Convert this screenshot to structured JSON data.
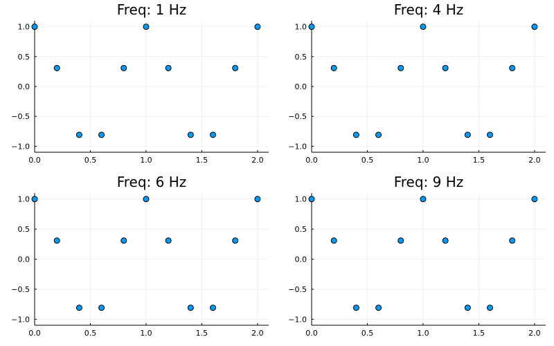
{
  "chart_data": [
    {
      "type": "scatter",
      "title": "Freq: 1 Hz",
      "xlabel": "",
      "ylabel": "",
      "xlim": [
        0,
        2.1
      ],
      "ylim": [
        -1.1,
        1.1
      ],
      "xticks": [
        0,
        0.5,
        1,
        1.5,
        2
      ],
      "xtick_labels": [
        "0.0",
        "0.5",
        "1.0",
        "1.5",
        "2.0"
      ],
      "yticks": [
        -1,
        -0.5,
        0,
        0.5,
        1
      ],
      "ytick_labels": [
        "−1.0",
        "−0.5",
        "0.0",
        "0.5",
        "1.0"
      ],
      "grid": true,
      "legend": "none",
      "color": "#009AFA",
      "series": [
        {
          "x": [
            0,
            0.2,
            0.4,
            0.6,
            0.8,
            1.0,
            1.2,
            1.4,
            1.6,
            1.8,
            2.0
          ],
          "y": [
            1.0,
            0.309,
            -0.809,
            -0.809,
            0.309,
            1.0,
            0.309,
            -0.809,
            -0.809,
            0.309,
            1.0
          ]
        }
      ]
    },
    {
      "type": "scatter",
      "title": "Freq: 4 Hz",
      "xlabel": "",
      "ylabel": "",
      "xlim": [
        0,
        2.1
      ],
      "ylim": [
        -1.1,
        1.1
      ],
      "xticks": [
        0,
        0.5,
        1,
        1.5,
        2
      ],
      "xtick_labels": [
        "0.0",
        "0.5",
        "1.0",
        "1.5",
        "2.0"
      ],
      "yticks": [
        -1,
        -0.5,
        0,
        0.5,
        1
      ],
      "ytick_labels": [
        "−1.0",
        "−0.5",
        "0.0",
        "0.5",
        "1.0"
      ],
      "grid": true,
      "legend": "none",
      "color": "#009AFA",
      "series": [
        {
          "x": [
            0,
            0.2,
            0.4,
            0.6,
            0.8,
            1.0,
            1.2,
            1.4,
            1.6,
            1.8,
            2.0
          ],
          "y": [
            1.0,
            0.309,
            -0.809,
            -0.809,
            0.309,
            1.0,
            0.309,
            -0.809,
            -0.809,
            0.309,
            1.0
          ]
        }
      ]
    },
    {
      "type": "scatter",
      "title": "Freq: 6 Hz",
      "xlabel": "",
      "ylabel": "",
      "xlim": [
        0,
        2.1
      ],
      "ylim": [
        -1.1,
        1.1
      ],
      "xticks": [
        0,
        0.5,
        1,
        1.5,
        2
      ],
      "xtick_labels": [
        "0.0",
        "0.5",
        "1.0",
        "1.5",
        "2.0"
      ],
      "yticks": [
        -1,
        -0.5,
        0,
        0.5,
        1
      ],
      "ytick_labels": [
        "−1.0",
        "−0.5",
        "0.0",
        "0.5",
        "1.0"
      ],
      "grid": true,
      "legend": "none",
      "color": "#009AFA",
      "series": [
        {
          "x": [
            0,
            0.2,
            0.4,
            0.6,
            0.8,
            1.0,
            1.2,
            1.4,
            1.6,
            1.8,
            2.0
          ],
          "y": [
            1.0,
            0.309,
            -0.809,
            -0.809,
            0.309,
            1.0,
            0.309,
            -0.809,
            -0.809,
            0.309,
            1.0
          ]
        }
      ]
    },
    {
      "type": "scatter",
      "title": "Freq: 9 Hz",
      "xlabel": "",
      "ylabel": "",
      "xlim": [
        0,
        2.1
      ],
      "ylim": [
        -1.1,
        1.1
      ],
      "xticks": [
        0,
        0.5,
        1,
        1.5,
        2
      ],
      "xtick_labels": [
        "0.0",
        "0.5",
        "1.0",
        "1.5",
        "2.0"
      ],
      "yticks": [
        -1,
        -0.5,
        0,
        0.5,
        1
      ],
      "ytick_labels": [
        "−1.0",
        "−0.5",
        "0.0",
        "0.5",
        "1.0"
      ],
      "grid": true,
      "legend": "none",
      "color": "#009AFA",
      "series": [
        {
          "x": [
            0,
            0.2,
            0.4,
            0.6,
            0.8,
            1.0,
            1.2,
            1.4,
            1.6,
            1.8,
            2.0
          ],
          "y": [
            1.0,
            0.309,
            -0.809,
            -0.809,
            0.309,
            1.0,
            0.309,
            -0.809,
            -0.809,
            0.309,
            1.0
          ]
        }
      ]
    }
  ]
}
